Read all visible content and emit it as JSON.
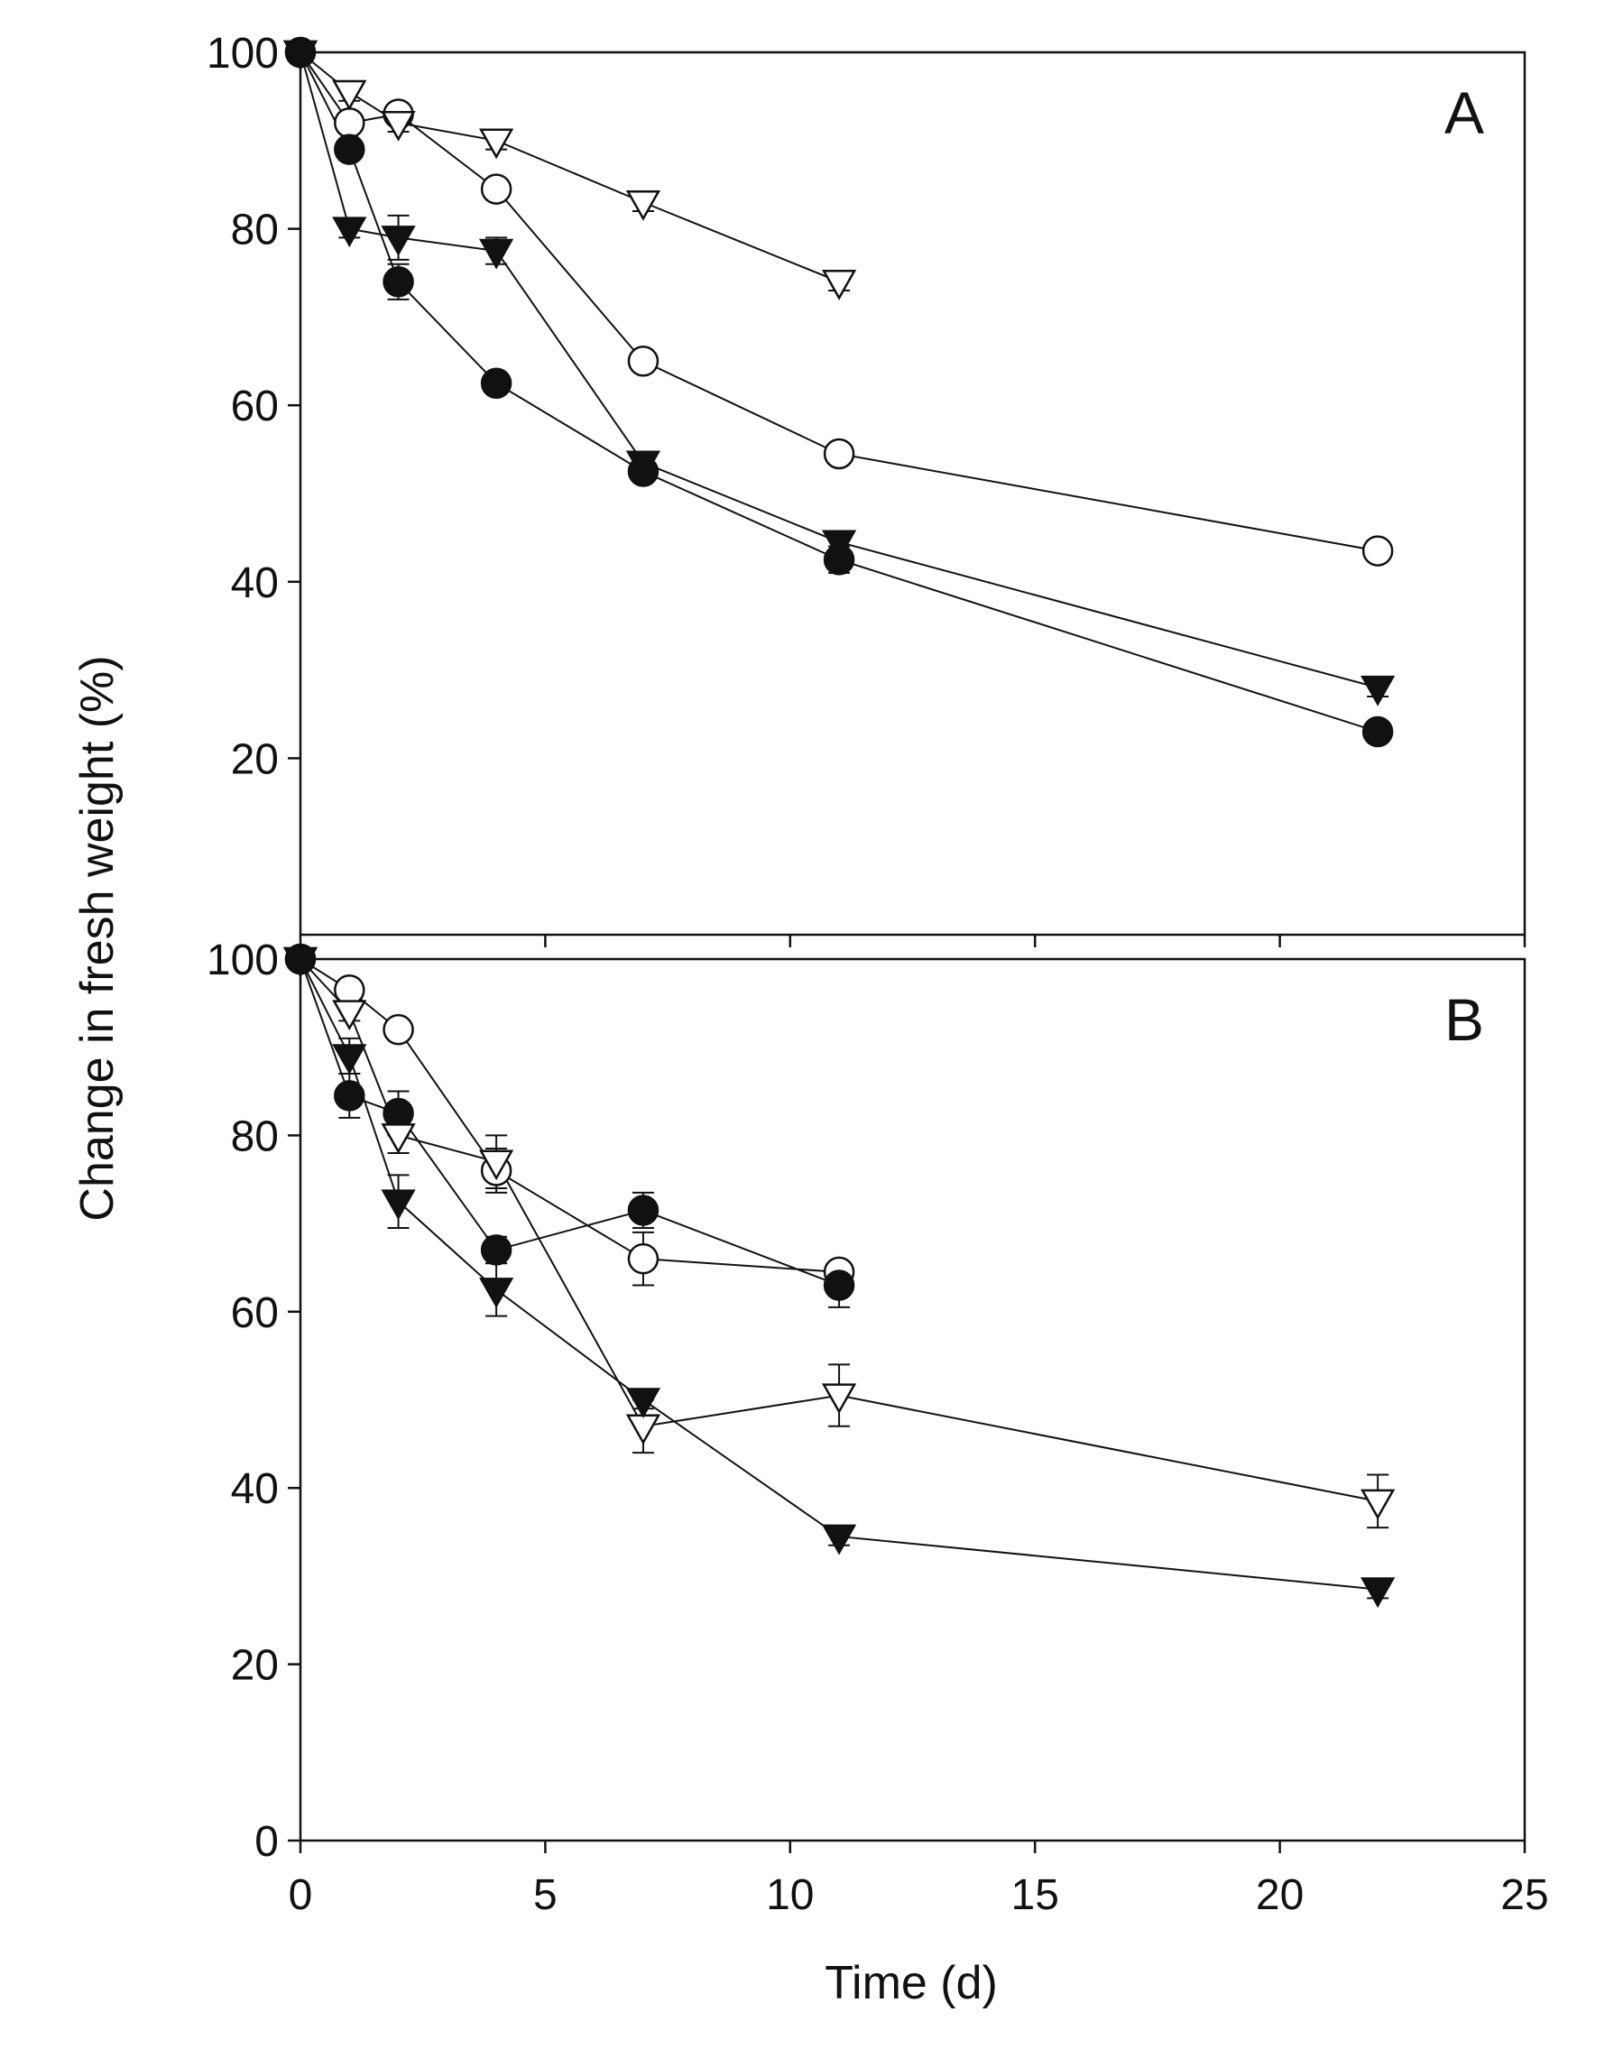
{
  "chart_data": {
    "type": "scatter",
    "xlabel": "Time (d)",
    "ylabel": "Change in fresh weight (%)",
    "xlim": [
      0,
      25
    ],
    "x_ticks": [
      "0",
      "5",
      "10",
      "15",
      "20",
      "25"
    ],
    "grid": false,
    "legend": "none",
    "panels": [
      {
        "panel_label": "A",
        "ylim": [
          0,
          100
        ],
        "y_ticks": [
          "20",
          "40",
          "60",
          "80",
          "100"
        ],
        "series": [
          {
            "marker": "open-circle",
            "x": [
              0,
              1,
              2,
              4,
              7,
              11,
              22
            ],
            "y": [
              100,
              92,
              93,
              84.5,
              65,
              54.5,
              43.5
            ],
            "err": [
              0,
              1,
              1,
              1,
              1,
              1,
              1
            ]
          },
          {
            "marker": "filled-circle",
            "x": [
              0,
              1,
              2,
              4,
              7,
              11,
              22
            ],
            "y": [
              100,
              89,
              74,
              62.5,
              52.5,
              42.5,
              23
            ],
            "err": [
              0,
              1,
              2,
              1,
              1,
              1.5,
              1
            ]
          },
          {
            "marker": "open-triangle-down",
            "x": [
              0,
              1,
              2,
              4,
              7,
              11
            ],
            "y": [
              100,
              95.5,
              92,
              90,
              83,
              74
            ],
            "err": [
              0,
              1,
              1,
              1,
              1,
              1
            ]
          },
          {
            "marker": "filled-triangle-down",
            "x": [
              0,
              1,
              2,
              4,
              7,
              11,
              22
            ],
            "y": [
              100,
              80,
              79,
              77.5,
              53.5,
              44.5,
              28
            ],
            "err": [
              0,
              1,
              2.5,
              1.5,
              1,
              1,
              1
            ]
          }
        ]
      },
      {
        "panel_label": "B",
        "ylim": [
          0,
          100
        ],
        "y_ticks": [
          "0",
          "20",
          "40",
          "60",
          "80",
          "100"
        ],
        "series": [
          {
            "marker": "open-circle",
            "x": [
              0,
              1,
              2,
              4,
              7,
              11
            ],
            "y": [
              100,
              96.5,
              92,
              76,
              66,
              64.5
            ],
            "err": [
              0,
              1,
              1,
              2.5,
              3,
              1
            ]
          },
          {
            "marker": "filled-circle",
            "x": [
              0,
              1,
              2,
              4,
              7,
              11
            ],
            "y": [
              100,
              84.5,
              82.5,
              67,
              71.5,
              63
            ],
            "err": [
              0,
              2.5,
              2.5,
              1.5,
              2,
              2.5
            ]
          },
          {
            "marker": "open-triangle-down",
            "x": [
              0,
              1,
              2,
              4,
              7,
              11,
              22
            ],
            "y": [
              100,
              94,
              80,
              77,
              47,
              50.5,
              38.5
            ],
            "err": [
              0,
              1,
              2,
              3,
              3,
              3.5,
              3
            ]
          },
          {
            "marker": "filled-triangle-down",
            "x": [
              0,
              1,
              2,
              4,
              7,
              11,
              22
            ],
            "y": [
              100,
              89,
              72.5,
              62.5,
              50,
              34.5,
              28.5
            ],
            "err": [
              0,
              2,
              3,
              3,
              1,
              1,
              1
            ]
          }
        ]
      }
    ]
  }
}
